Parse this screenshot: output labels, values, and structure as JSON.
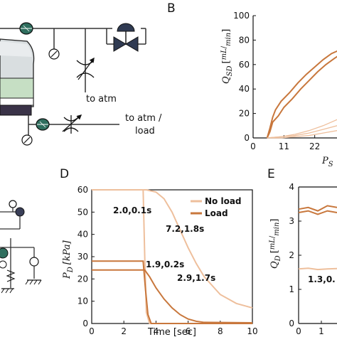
{
  "panels": {
    "B": "B",
    "D": "D",
    "E": "E"
  },
  "schematic": {
    "atm_label": "to atm",
    "atm_load_label_1": "to atm /",
    "atm_load_label_2": "load"
  },
  "colors": {
    "load": "#c8773c",
    "no_load": "#eebf9c",
    "gauge": "#2f6e5e",
    "valve": "#2f3a52",
    "reservoir_green": "#c6dfc4",
    "reservoir_dark": "#3a3348"
  },
  "chart_data": [
    {
      "panel": "B",
      "type": "line",
      "ylabel_main": "Q",
      "ylabel_sub": "SD",
      "ylabel_unit_num": "mL",
      "ylabel_unit_den": "min",
      "xlabel_main": "P",
      "xlabel_sub": "S",
      "x_ticks": [
        "0",
        "11",
        "22"
      ],
      "y_ticks": [
        "0",
        "20",
        "40",
        "60",
        "80",
        "100"
      ],
      "xlim": [
        0,
        33
      ],
      "ylim": [
        0,
        100
      ],
      "series": [
        {
          "x": [
            5,
            6,
            7,
            9,
            11,
            14,
            17,
            20,
            23,
            26,
            29,
            31
          ],
          "y": [
            0,
            5,
            13,
            18,
            25,
            32,
            40,
            47,
            54,
            60,
            65,
            68
          ]
        },
        {
          "x": [
            5,
            6,
            7,
            8,
            10,
            13,
            16,
            19,
            22,
            25,
            28,
            31
          ],
          "y": [
            0,
            8,
            17,
            23,
            30,
            37,
            45,
            52,
            58,
            64,
            69,
            72
          ]
        },
        {
          "x": [
            5,
            10,
            15,
            20,
            25,
            30,
            33
          ],
          "y": [
            0,
            1,
            3,
            6,
            10,
            15,
            18
          ]
        },
        {
          "x": [
            5,
            10,
            15,
            20,
            25,
            30,
            33
          ],
          "y": [
            0,
            1,
            2,
            4,
            7,
            10,
            12
          ]
        },
        {
          "x": [
            5,
            10,
            15,
            20,
            25,
            30,
            33
          ],
          "y": [
            0,
            0,
            1,
            2,
            4,
            6,
            8
          ]
        }
      ]
    },
    {
      "panel": "D",
      "type": "line",
      "ylabel_main": "P",
      "ylabel_sub": "D",
      "ylabel_unit": "[kPa]",
      "xlabel": "Time [sec]",
      "x_ticks": [
        "0",
        "2",
        "4",
        "6",
        "8",
        "10"
      ],
      "y_ticks": [
        "0",
        "10",
        "20",
        "30",
        "40",
        "50",
        "60"
      ],
      "xlim": [
        0,
        10
      ],
      "ylim": [
        0,
        60
      ],
      "legend": [
        "No load",
        "Load"
      ],
      "annotations": [
        "2.0,0.1s",
        "7.2,1.8s",
        "1.9,0.2s",
        "2.9,1.7s"
      ],
      "series": [
        {
          "name": "No load",
          "x": [
            0,
            3.2,
            3.3,
            3.4,
            3.6,
            10
          ],
          "y": [
            60,
            60,
            30,
            5,
            0,
            0
          ]
        },
        {
          "name": "No load",
          "x": [
            0,
            3.4,
            4.0,
            4.5,
            5.0,
            5.5,
            6.0,
            6.5,
            7.0,
            7.5,
            8.0,
            8.5,
            9.0,
            9.5,
            10
          ],
          "y": [
            60,
            60,
            59,
            56,
            50,
            42,
            34,
            27,
            21,
            17,
            13,
            11,
            9,
            8,
            7
          ]
        },
        {
          "name": "Load",
          "x": [
            0,
            3.2,
            3.35,
            3.5,
            3.7,
            10
          ],
          "y": [
            28,
            28,
            15,
            4,
            0,
            0
          ]
        },
        {
          "name": "Load",
          "x": [
            0,
            3.3,
            3.6,
            4.0,
            4.5,
            5.0,
            5.5,
            6.0,
            6.5,
            7.0,
            10
          ],
          "y": [
            24,
            24,
            21,
            16,
            11,
            7,
            4,
            2,
            1,
            0.5,
            0.3
          ]
        }
      ]
    },
    {
      "panel": "E",
      "type": "line",
      "ylabel_main": "Q",
      "ylabel_sub": "D",
      "ylabel_unit_num": "mL",
      "ylabel_unit_den": "min",
      "x_ticks": [
        "0",
        "1"
      ],
      "y_ticks": [
        "0",
        "1",
        "2",
        "3",
        "4"
      ],
      "xlim": [
        0,
        3.5
      ],
      "ylim": [
        0,
        4
      ],
      "annotations": [
        "1.3,0."
      ],
      "series": [
        {
          "x": [
            0,
            0.5,
            1.0,
            1.5,
            2.0
          ],
          "y": [
            3.35,
            3.4,
            3.3,
            3.45,
            3.4
          ]
        },
        {
          "x": [
            0,
            0.5,
            1.0,
            1.5,
            2.0
          ],
          "y": [
            3.25,
            3.3,
            3.2,
            3.3,
            3.25
          ]
        },
        {
          "x": [
            0,
            0.5,
            1.0,
            1.5,
            2.0
          ],
          "y": [
            1.6,
            1.62,
            1.58,
            1.6,
            1.61
          ]
        }
      ]
    }
  ]
}
